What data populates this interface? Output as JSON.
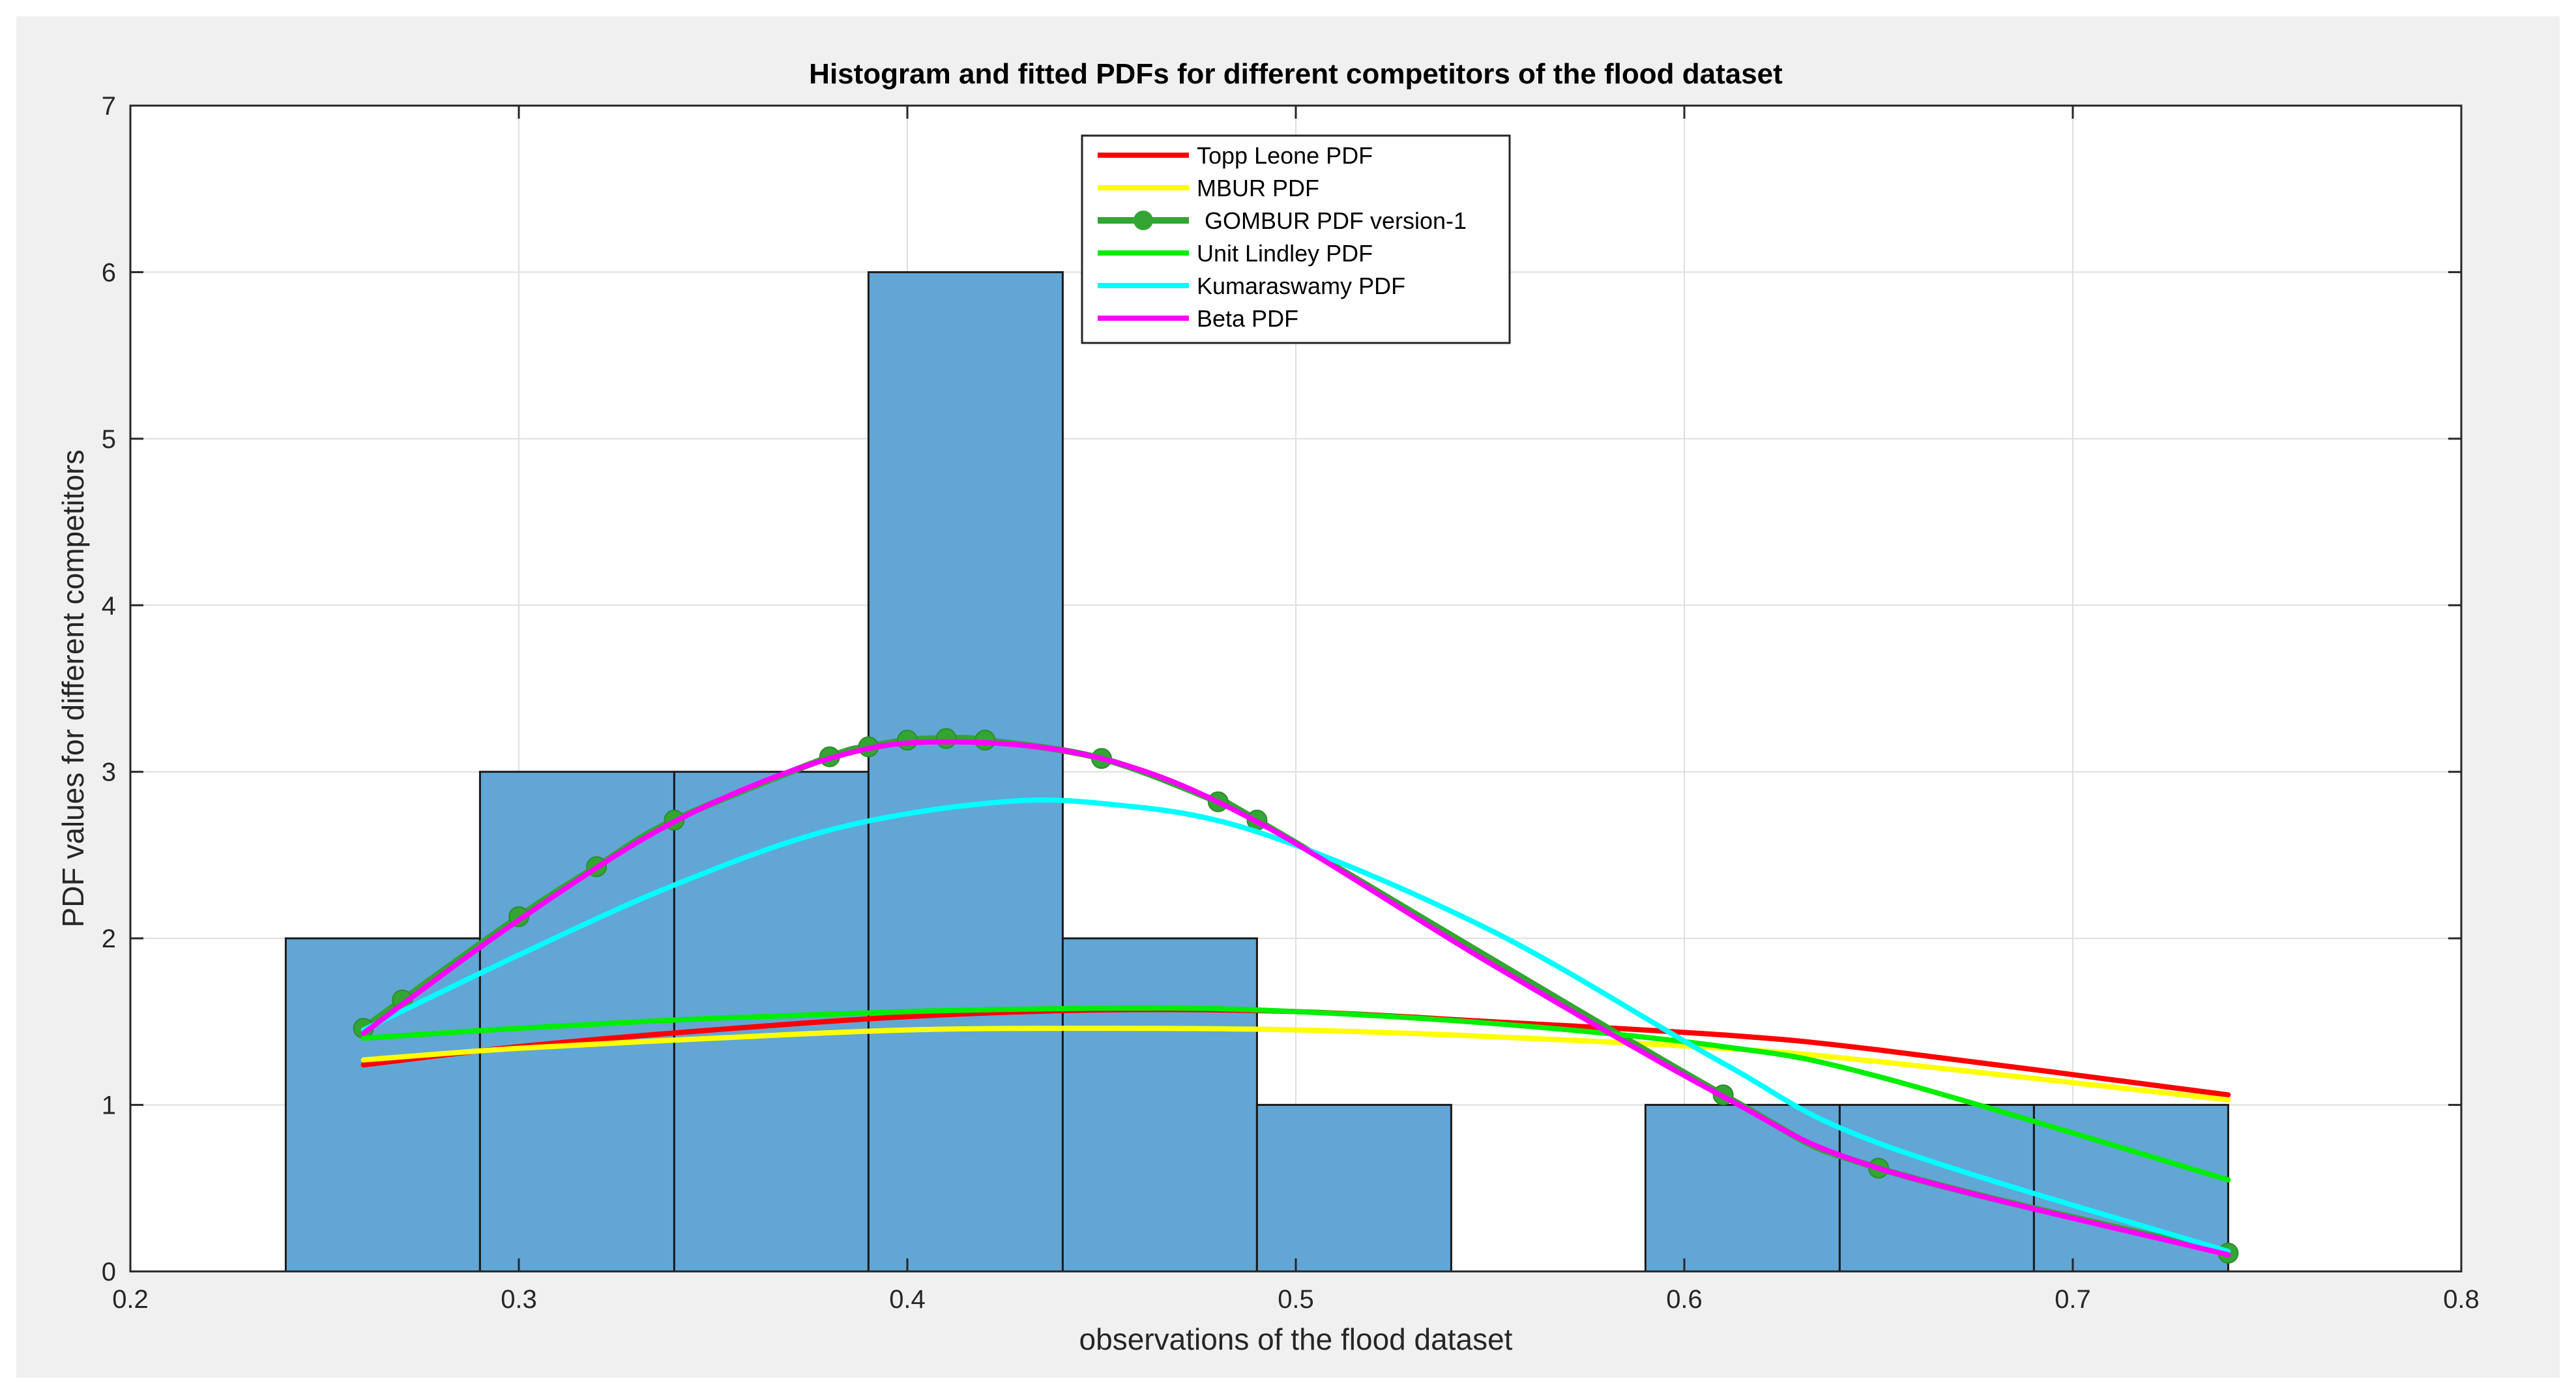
{
  "chart_data": {
    "type": "bar",
    "title": "Histogram and fitted PDFs for different competitors of the flood dataset",
    "xlabel": "observations of the flood dataset",
    "ylabel": "PDF values for different competitors",
    "xlim": [
      0.2,
      0.8
    ],
    "ylim": [
      0,
      7
    ],
    "xticks": [
      "0.2",
      "0.3",
      "0.4",
      "0.5",
      "0.6",
      "0.7",
      "0.8"
    ],
    "yticks": [
      "0",
      "1",
      "2",
      "3",
      "4",
      "5",
      "6",
      "7"
    ],
    "grid": true,
    "legend_position": "top-center",
    "histogram": {
      "color": "#62a6d6",
      "bins": [
        {
          "x0": 0.24,
          "x1": 0.29,
          "value": 2
        },
        {
          "x0": 0.29,
          "x1": 0.34,
          "value": 3
        },
        {
          "x0": 0.34,
          "x1": 0.39,
          "value": 3
        },
        {
          "x0": 0.39,
          "x1": 0.44,
          "value": 6
        },
        {
          "x0": 0.44,
          "x1": 0.49,
          "value": 2
        },
        {
          "x0": 0.49,
          "x1": 0.54,
          "value": 1
        },
        {
          "x0": 0.59,
          "x1": 0.64,
          "value": 1
        },
        {
          "x0": 0.64,
          "x1": 0.69,
          "value": 1
        },
        {
          "x0": 0.69,
          "x1": 0.74,
          "value": 1
        }
      ]
    },
    "series": [
      {
        "name": "Topp Leone PDF",
        "color": "#ff0000",
        "marker": false,
        "x": [
          0.26,
          0.3,
          0.35,
          0.4,
          0.45,
          0.5,
          0.55,
          0.61,
          0.65,
          0.74
        ],
        "y": [
          1.24,
          1.35,
          1.45,
          1.53,
          1.57,
          1.56,
          1.5,
          1.42,
          1.33,
          1.06
        ]
      },
      {
        "name": "MBUR PDF",
        "color": "#ffff00",
        "marker": false,
        "x": [
          0.26,
          0.3,
          0.35,
          0.4,
          0.45,
          0.5,
          0.55,
          0.61,
          0.65,
          0.74
        ],
        "y": [
          1.27,
          1.34,
          1.4,
          1.45,
          1.46,
          1.45,
          1.41,
          1.34,
          1.26,
          1.03
        ]
      },
      {
        "name": "GOMBUR PDF version-1",
        "color": "#32a532",
        "marker": true,
        "x": [
          0.26,
          0.27,
          0.3,
          0.32,
          0.34,
          0.38,
          0.39,
          0.4,
          0.41,
          0.42,
          0.45,
          0.48,
          0.49,
          0.61,
          0.65,
          0.74
        ],
        "y": [
          1.46,
          1.63,
          2.13,
          2.43,
          2.71,
          3.09,
          3.15,
          3.19,
          3.2,
          3.19,
          3.08,
          2.82,
          2.71,
          1.06,
          0.62,
          0.11
        ]
      },
      {
        "name": "Unit Lindley PDF",
        "color": "#00ee00",
        "marker": false,
        "x": [
          0.26,
          0.3,
          0.35,
          0.4,
          0.45,
          0.49,
          0.55,
          0.61,
          0.65,
          0.74
        ],
        "y": [
          1.4,
          1.46,
          1.52,
          1.56,
          1.58,
          1.57,
          1.49,
          1.35,
          1.17,
          0.55
        ]
      },
      {
        "name": "Kumaraswamy PDF",
        "color": "#00ffff",
        "marker": false,
        "x": [
          0.26,
          0.3,
          0.34,
          0.38,
          0.42,
          0.45,
          0.49,
          0.55,
          0.61,
          0.65,
          0.74
        ],
        "y": [
          1.45,
          1.9,
          2.32,
          2.65,
          2.81,
          2.81,
          2.64,
          2.05,
          1.25,
          0.77,
          0.12
        ]
      },
      {
        "name": "Beta PDF",
        "color": "#ff00ff",
        "marker": false,
        "x": [
          0.26,
          0.3,
          0.34,
          0.38,
          0.41,
          0.45,
          0.49,
          0.55,
          0.61,
          0.65,
          0.74
        ],
        "y": [
          1.43,
          2.11,
          2.7,
          3.08,
          3.18,
          3.08,
          2.7,
          1.85,
          1.05,
          0.62,
          0.1
        ]
      }
    ]
  }
}
